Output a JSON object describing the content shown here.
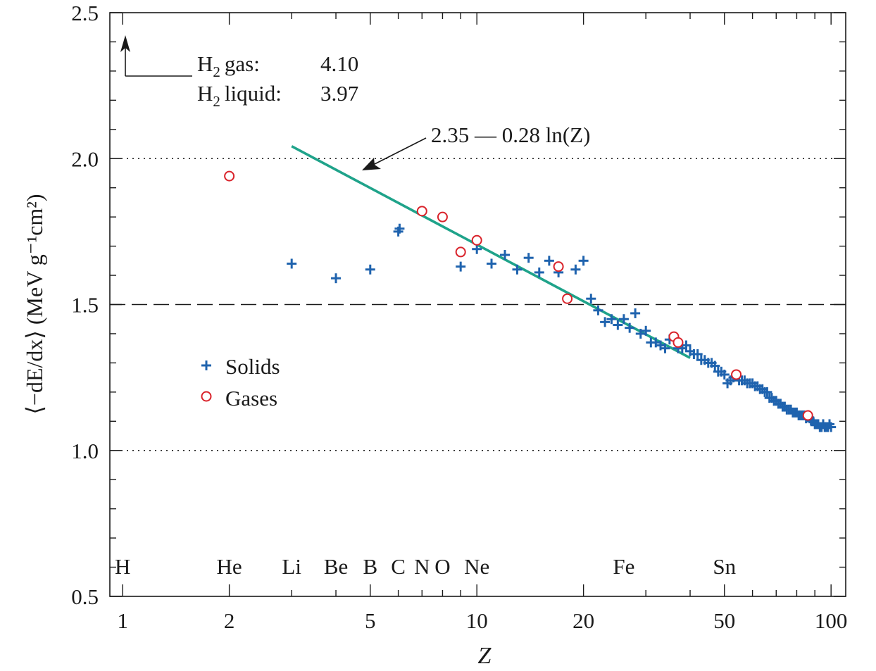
{
  "chart_data": {
    "type": "scatter",
    "x_scale": "log",
    "xlim": [
      0.92,
      110
    ],
    "ylim": [
      0.5,
      2.5
    ],
    "x_ticks": [
      1,
      2,
      5,
      10,
      20,
      50,
      100
    ],
    "x_tick_labels": [
      "1",
      "2",
      "5",
      "10",
      "20",
      "50",
      "100"
    ],
    "y_ticks": [
      0.5,
      1.0,
      1.5,
      2.0,
      2.5
    ],
    "y_tick_labels": [
      "0.5",
      "1.0",
      "1.5",
      "2.0",
      "2.5"
    ],
    "xlabel": "Z",
    "ylabel": "⟨−dE/dx⟩ (MeV g⁻¹cm²)",
    "reference_lines": [
      {
        "y": 2.0,
        "style": "dotted"
      },
      {
        "y": 1.5,
        "style": "dashed"
      },
      {
        "y": 1.0,
        "style": "dotted"
      }
    ],
    "fit_line": {
      "label": "2.35 — 0.28 ln(Z)",
      "intercept": 2.35,
      "slope": -0.28,
      "x_range": [
        3,
        40
      ],
      "color": "#1fa38a"
    },
    "element_labels": [
      {
        "text": "H",
        "z": 1
      },
      {
        "text": "He",
        "z": 2
      },
      {
        "text": "Li",
        "z": 3
      },
      {
        "text": "Be",
        "z": 4
      },
      {
        "text": "B",
        "z": 5
      },
      {
        "text": "C",
        "z": 6
      },
      {
        "text": "N",
        "z": 7
      },
      {
        "text": "O",
        "z": 8
      },
      {
        "text": "Ne",
        "z": 10
      },
      {
        "text": "Fe",
        "z": 26
      },
      {
        "text": "Sn",
        "z": 50
      }
    ],
    "h2_annotation": {
      "gas_label": "gas:",
      "gas_value": "4.10",
      "liquid_label": "liquid:",
      "liquid_value": "3.97",
      "prefix": "H",
      "subscript": "2"
    },
    "legend": {
      "placement": "center-left",
      "items": [
        {
          "label": "Solids",
          "marker": "plus"
        },
        {
          "label": "Gases",
          "marker": "circle"
        }
      ]
    },
    "series": [
      {
        "name": "Solids",
        "color": "#1f63ae",
        "marker": "plus",
        "points": [
          [
            3,
            1.64
          ],
          [
            4,
            1.59
          ],
          [
            5,
            1.62
          ],
          [
            6,
            1.75
          ],
          [
            6.05,
            1.76
          ],
          [
            7,
            1.82
          ],
          [
            8,
            1.8
          ],
          [
            9,
            1.63
          ],
          [
            10,
            1.69
          ],
          [
            11,
            1.64
          ],
          [
            12,
            1.67
          ],
          [
            13,
            1.62
          ],
          [
            14,
            1.66
          ],
          [
            15,
            1.61
          ],
          [
            16,
            1.65
          ],
          [
            17,
            1.61
          ],
          [
            19,
            1.62
          ],
          [
            20,
            1.65
          ],
          [
            21,
            1.52
          ],
          [
            22,
            1.48
          ],
          [
            23,
            1.44
          ],
          [
            24,
            1.45
          ],
          [
            25,
            1.43
          ],
          [
            26,
            1.45
          ],
          [
            27,
            1.42
          ],
          [
            28,
            1.47
          ],
          [
            29,
            1.4
          ],
          [
            30,
            1.41
          ],
          [
            31,
            1.37
          ],
          [
            32,
            1.37
          ],
          [
            33,
            1.36
          ],
          [
            34,
            1.35
          ],
          [
            35,
            1.38
          ],
          [
            37,
            1.35
          ],
          [
            38,
            1.35
          ],
          [
            39,
            1.36
          ],
          [
            40,
            1.34
          ],
          [
            41,
            1.33
          ],
          [
            42,
            1.33
          ],
          [
            43,
            1.31
          ],
          [
            44,
            1.31
          ],
          [
            45,
            1.3
          ],
          [
            46,
            1.3
          ],
          [
            47,
            1.29
          ],
          [
            48,
            1.27
          ],
          [
            49,
            1.27
          ],
          [
            50,
            1.26
          ],
          [
            51,
            1.23
          ],
          [
            52,
            1.24
          ],
          [
            53,
            1.25
          ],
          [
            55,
            1.24
          ],
          [
            56,
            1.24
          ],
          [
            57,
            1.24
          ],
          [
            58,
            1.23
          ],
          [
            59,
            1.23
          ],
          [
            60,
            1.23
          ],
          [
            61,
            1.22
          ],
          [
            62,
            1.22
          ],
          [
            63,
            1.21
          ],
          [
            64,
            1.21
          ],
          [
            65,
            1.2
          ],
          [
            66,
            1.2
          ],
          [
            67,
            1.18
          ],
          [
            68,
            1.18
          ],
          [
            69,
            1.17
          ],
          [
            70,
            1.17
          ],
          [
            71,
            1.16
          ],
          [
            72,
            1.16
          ],
          [
            73,
            1.15
          ],
          [
            74,
            1.15
          ],
          [
            75,
            1.14
          ],
          [
            76,
            1.14
          ],
          [
            77,
            1.14
          ],
          [
            78,
            1.13
          ],
          [
            79,
            1.13
          ],
          [
            80,
            1.13
          ],
          [
            81,
            1.12
          ],
          [
            82,
            1.12
          ],
          [
            83,
            1.12
          ],
          [
            84,
            1.12
          ],
          [
            85,
            1.11
          ],
          [
            87,
            1.11
          ],
          [
            88,
            1.1
          ],
          [
            89,
            1.1
          ],
          [
            90,
            1.09
          ],
          [
            91,
            1.09
          ],
          [
            92,
            1.09
          ],
          [
            93,
            1.08
          ],
          [
            94,
            1.08
          ],
          [
            95,
            1.09
          ],
          [
            96,
            1.08
          ],
          [
            97,
            1.08
          ],
          [
            98,
            1.08
          ],
          [
            99,
            1.09
          ],
          [
            100,
            1.08
          ]
        ]
      },
      {
        "name": "Gases",
        "color": "#d9222a",
        "marker": "circle",
        "points": [
          [
            2,
            1.94
          ],
          [
            7,
            1.82
          ],
          [
            8,
            1.8
          ],
          [
            9,
            1.68
          ],
          [
            10,
            1.72
          ],
          [
            17,
            1.63
          ],
          [
            18,
            1.52
          ],
          [
            36,
            1.39
          ],
          [
            37,
            1.37
          ],
          [
            54,
            1.26
          ],
          [
            86,
            1.12
          ]
        ]
      }
    ]
  }
}
